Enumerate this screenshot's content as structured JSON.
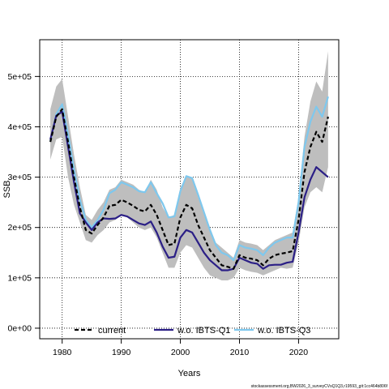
{
  "chart_data": {
    "type": "line",
    "xlabel": "Years",
    "ylabel": "SSB",
    "xlim": [
      1976.2,
      2026.8
    ],
    "ylim": [
      -21000,
      573000
    ],
    "x_ticks": [
      {
        "value": 1980,
        "label": "1980"
      },
      {
        "value": 1990,
        "label": "1990"
      },
      {
        "value": 2000,
        "label": "2000"
      },
      {
        "value": 2010,
        "label": "2010"
      },
      {
        "value": 2020,
        "label": "2020"
      }
    ],
    "y_ticks": [
      {
        "value": 0,
        "label": "0e+00"
      },
      {
        "value": 100000,
        "label": "1e+05"
      },
      {
        "value": 200000,
        "label": "2e+05"
      },
      {
        "value": 300000,
        "label": "3e+05"
      },
      {
        "value": 400000,
        "label": "4e+05"
      },
      {
        "value": 500000,
        "label": "5e+05"
      }
    ],
    "grid": true,
    "legend_position": "bottom",
    "years": [
      1978,
      1979,
      1980,
      1981,
      1982,
      1983,
      1984,
      1985,
      1986,
      1987,
      1988,
      1989,
      1990,
      1991,
      1992,
      1993,
      1994,
      1995,
      1996,
      1997,
      1998,
      1999,
      2000,
      2001,
      2002,
      2003,
      2004,
      2005,
      2006,
      2007,
      2008,
      2009,
      2010,
      2011,
      2012,
      2013,
      2014,
      2015,
      2016,
      2017,
      2018,
      2019,
      2020,
      2021,
      2022,
      2023,
      2024,
      2025
    ],
    "confidence_band": {
      "color": "#bebebe",
      "lower": [
        335000,
        375000,
        380000,
        300000,
        245000,
        210000,
        175000,
        170000,
        185000,
        195000,
        210000,
        215000,
        225000,
        220000,
        210000,
        200000,
        195000,
        200000,
        180000,
        150000,
        120000,
        120000,
        150000,
        165000,
        160000,
        140000,
        120000,
        105000,
        100000,
        95000,
        95000,
        100000,
        120000,
        115000,
        112000,
        110000,
        105000,
        110000,
        115000,
        120000,
        118000,
        120000,
        170000,
        240000,
        270000,
        280000,
        270000,
        320000
      ],
      "upper": [
        435000,
        480000,
        495000,
        420000,
        345000,
        280000,
        225000,
        215000,
        235000,
        250000,
        275000,
        280000,
        295000,
        290000,
        285000,
        275000,
        270000,
        295000,
        275000,
        240000,
        220000,
        225000,
        280000,
        300000,
        300000,
        260000,
        230000,
        200000,
        170000,
        160000,
        150000,
        140000,
        175000,
        170000,
        168000,
        165000,
        155000,
        165000,
        175000,
        180000,
        185000,
        190000,
        260000,
        380000,
        450000,
        490000,
        470000,
        550000
      ]
    },
    "series": [
      {
        "name": "current",
        "color": "#000000",
        "style": "dashed",
        "values": [
          370000,
          420000,
          435000,
          370000,
          300000,
          240000,
          195000,
          188000,
          205000,
          220000,
          243000,
          245000,
          255000,
          250000,
          243000,
          235000,
          232000,
          245000,
          225000,
          195000,
          165000,
          168000,
          220000,
          245000,
          238000,
          205000,
          180000,
          155000,
          140000,
          125000,
          122000,
          118000,
          145000,
          140000,
          138000,
          135000,
          125000,
          138000,
          145000,
          148000,
          150000,
          153000,
          215000,
          310000,
          360000,
          390000,
          370000,
          420000
        ]
      },
      {
        "name": "w.o. IBTS-Q1",
        "color": "#2b1f86",
        "style": "solid",
        "values": [
          375000,
          422000,
          430000,
          360000,
          290000,
          228000,
          210000,
          195000,
          210000,
          218000,
          217000,
          218000,
          225000,
          222000,
          215000,
          208000,
          205000,
          212000,
          190000,
          162000,
          140000,
          142000,
          180000,
          195000,
          190000,
          170000,
          150000,
          135000,
          125000,
          115000,
          115000,
          118000,
          140000,
          135000,
          130000,
          128000,
          118000,
          125000,
          126000,
          126000,
          130000,
          132000,
          190000,
          260000,
          295000,
          320000,
          310000,
          300000
        ]
      },
      {
        "name": "w.o. IBTS-Q3",
        "color": "#7ec8ee",
        "style": "solid",
        "values": [
          372000,
          425000,
          445000,
          385000,
          315000,
          255000,
          215000,
          200000,
          215000,
          235000,
          268000,
          275000,
          290000,
          285000,
          280000,
          272000,
          270000,
          290000,
          268000,
          248000,
          220000,
          222000,
          272000,
          302000,
          298000,
          265000,
          230000,
          195000,
          165000,
          150000,
          145000,
          135000,
          165000,
          160000,
          158000,
          155000,
          145000,
          160000,
          170000,
          175000,
          180000,
          180000,
          250000,
          360000,
          410000,
          440000,
          420000,
          460000
        ]
      }
    ]
  },
  "footnote": "stockassessment.org,BW2026_3_surveyCVsQ1Q3,r19593_git:1cc464b806f"
}
